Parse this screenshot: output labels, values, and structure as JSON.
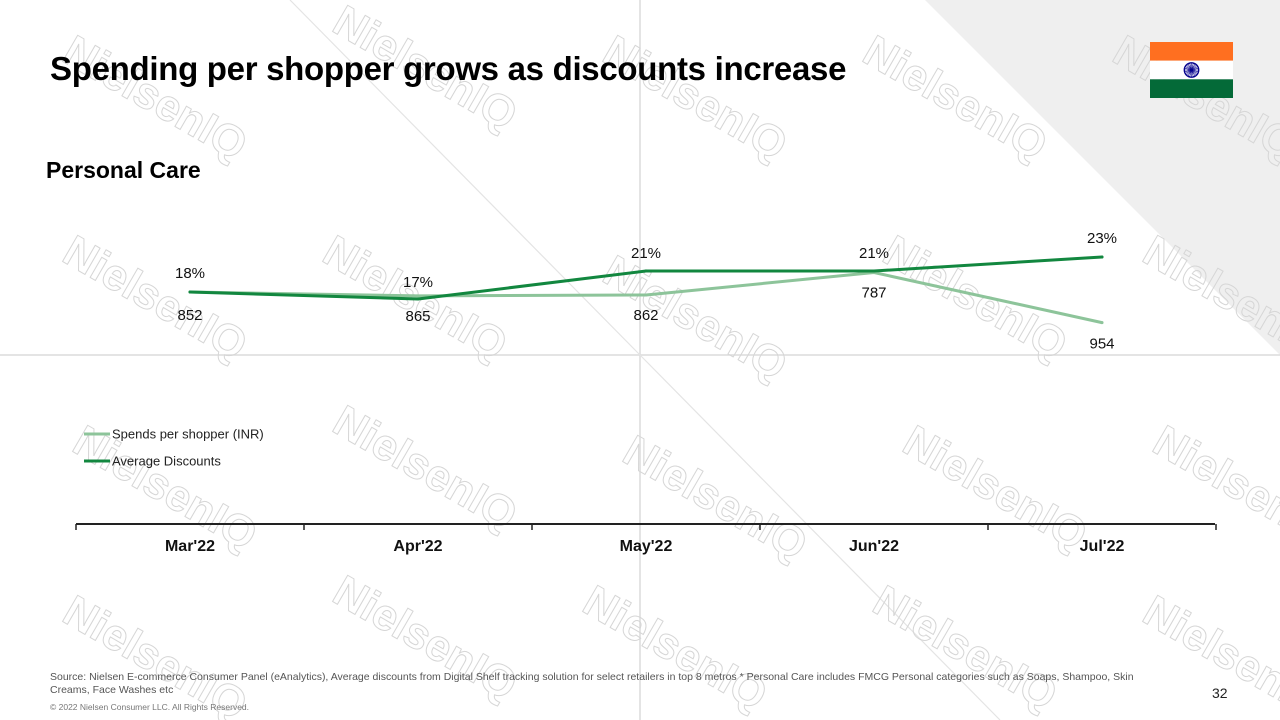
{
  "page": {
    "title": "Spending per shopper grows as discounts increase",
    "subtitle": "Personal Care",
    "source": "Source: Nielsen E-commerce Consumer Panel (eAnalytics), Average discounts from Digital Shelf tracking solution for select retailers in top 8 metros * Personal Care includes FMCG Personal categories such as Soaps, Shampoo, Skin Creams, Face Washes etc",
    "copyright": "© 2022 Nielsen Consumer LLC. All Rights Reserved.",
    "page_number": "32",
    "watermark_text": "NielsenIQ"
  },
  "flag": {
    "icon": "india-flag-icon",
    "colors": {
      "saffron": "#FF6F20",
      "white": "#FFFFFF",
      "green": "#046A38",
      "chakra": "#06038D"
    }
  },
  "colors": {
    "spends_line": "#8DC49A",
    "discount_line": "#12873F",
    "axis": "#222222",
    "corner_background": "#EFEFEF"
  },
  "chart_data": {
    "type": "line",
    "title": "",
    "xlabel": "",
    "ylabel": "",
    "grid": false,
    "legend_position": "left",
    "categories": [
      "Mar'22",
      "Apr'22",
      "May'22",
      "Jun'22",
      "Jul'22"
    ],
    "series": [
      {
        "name": "Spends per shopper (INR)",
        "values": [
          852,
          865,
          862,
          787,
          954
        ],
        "labels": [
          "852",
          "865",
          "862",
          "787",
          "954"
        ],
        "color": "#8DC49A"
      },
      {
        "name": "Average Discounts",
        "values": [
          18,
          17,
          21,
          21,
          23
        ],
        "labels": [
          "18%",
          "17%",
          "21%",
          "21%",
          "23%"
        ],
        "color": "#12873F"
      }
    ]
  }
}
